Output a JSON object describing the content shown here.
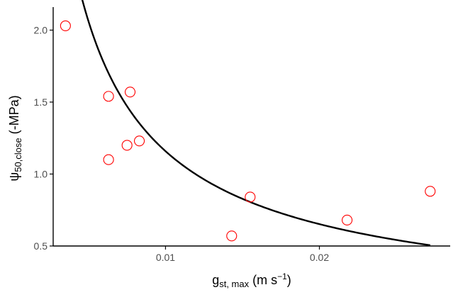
{
  "chart_data": {
    "type": "scatter",
    "title": "",
    "xlabel": {
      "base": "g",
      "sub": "st, max",
      "suffix": " (m s",
      "sup": "−1",
      "close": ")"
    },
    "ylabel": {
      "base": "ψ",
      "sub": "50,close",
      "suffix": " (-MPa)"
    },
    "xlim": [
      0.0027,
      0.0285
    ],
    "ylim": [
      0.5,
      2.16
    ],
    "xticks": [
      {
        "value": 0.01,
        "label": "0.01"
      },
      {
        "value": 0.02,
        "label": "0.02"
      }
    ],
    "yticks": [
      {
        "value": 0.5,
        "label": "0.5"
      },
      {
        "value": 1.0,
        "label": "1.0"
      },
      {
        "value": 1.5,
        "label": "1.5"
      },
      {
        "value": 2.0,
        "label": "2.0"
      }
    ],
    "grid": false,
    "points": {
      "x": [
        0.0035,
        0.0063,
        0.0077,
        0.0063,
        0.0075,
        0.0083,
        0.0155,
        0.0143,
        0.0218,
        0.0272
      ],
      "y": [
        2.03,
        1.54,
        1.57,
        1.1,
        1.2,
        1.23,
        0.84,
        0.57,
        0.68,
        0.88
      ]
    },
    "fit_curve": {
      "form": "a*x^b",
      "a": 0.0254,
      "b": -0.8296,
      "x_from": 0.0035,
      "x_to": 0.0272
    },
    "colors": {
      "points": "#ff0000",
      "curve": "#000000",
      "axes": "#000000",
      "tick_text": "#4d4d4d"
    }
  }
}
